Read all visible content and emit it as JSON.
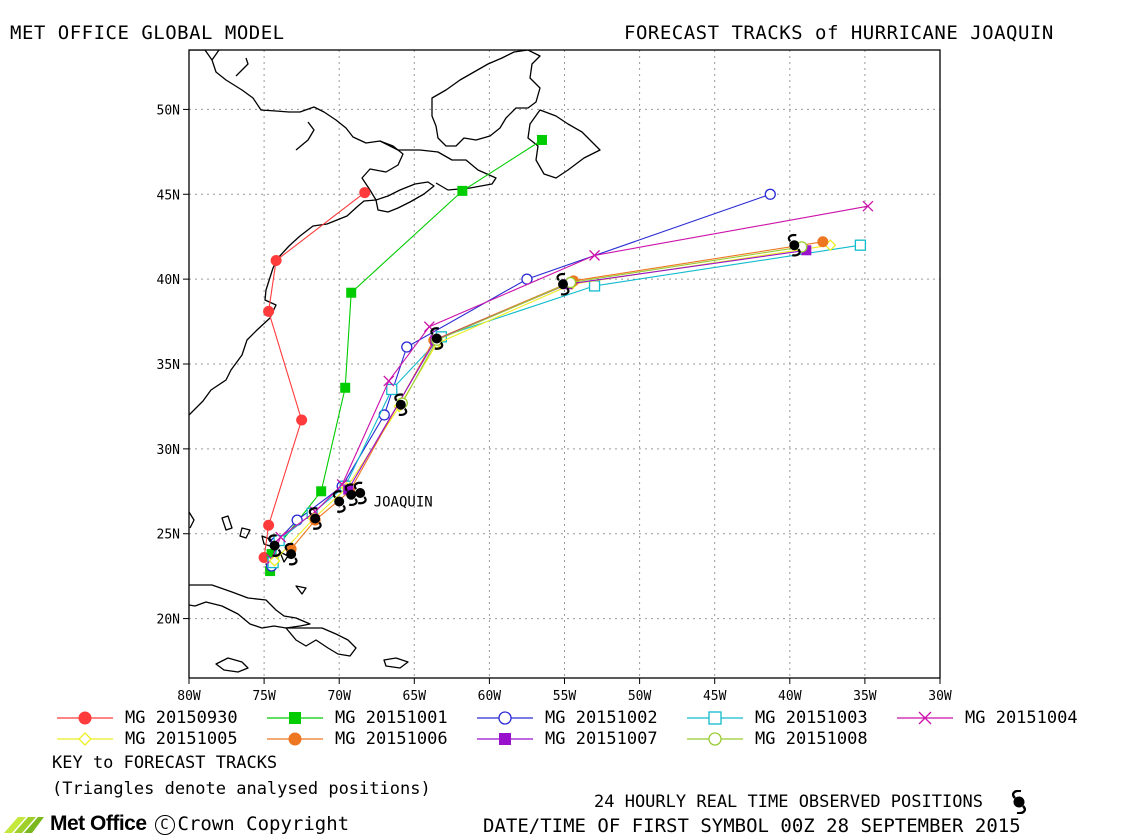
{
  "header": {
    "left_title": "MET OFFICE GLOBAL MODEL",
    "right_title": "FORECAST TRACKS of HURRICANE JOAQUIN"
  },
  "map": {
    "lon_range": [
      -80,
      -30
    ],
    "lat_range": [
      16.5,
      53.5
    ],
    "lon_ticks": [
      {
        "value": -80,
        "label": "80W"
      },
      {
        "value": -75,
        "label": "75W"
      },
      {
        "value": -70,
        "label": "70W"
      },
      {
        "value": -65,
        "label": "65W"
      },
      {
        "value": -60,
        "label": "60W"
      },
      {
        "value": -55,
        "label": "55W"
      },
      {
        "value": -50,
        "label": "50W"
      },
      {
        "value": -45,
        "label": "45W"
      },
      {
        "value": -40,
        "label": "40W"
      },
      {
        "value": -35,
        "label": "35W"
      },
      {
        "value": -30,
        "label": "30W"
      }
    ],
    "lat_ticks": [
      {
        "value": 20,
        "label": "20N"
      },
      {
        "value": 25,
        "label": "25N"
      },
      {
        "value": 30,
        "label": "30N"
      },
      {
        "value": 35,
        "label": "35N"
      },
      {
        "value": 40,
        "label": "40N"
      },
      {
        "value": 45,
        "label": "45N"
      },
      {
        "value": 50,
        "label": "50N"
      }
    ],
    "storm_label": {
      "text": "JOAQUIN",
      "lon": -67.7,
      "lat": 26.6
    }
  },
  "chart_data": {
    "type": "scatter",
    "title": "FORECAST TRACKS of HURRICANE JOAQUIN",
    "grid": true,
    "legend_placement": "bottom",
    "series": [
      {
        "name": "MG 20150930",
        "color": "#ff3b3b",
        "marker": "filled-circle",
        "points": [
          [
            -75.0,
            23.6
          ],
          [
            -74.7,
            25.5
          ],
          [
            -72.5,
            31.7
          ],
          [
            -74.7,
            38.1
          ],
          [
            -74.2,
            41.1
          ],
          [
            -68.3,
            45.1
          ]
        ]
      },
      {
        "name": "MG 20151001",
        "color": "#00cc00",
        "marker": "filled-square",
        "points": [
          [
            -74.6,
            22.8
          ],
          [
            -74.5,
            23.8
          ],
          [
            -71.2,
            27.5
          ],
          [
            -69.6,
            33.6
          ],
          [
            -69.2,
            39.2
          ],
          [
            -61.8,
            45.2
          ],
          [
            -56.5,
            48.2
          ]
        ]
      },
      {
        "name": "MG 20151002",
        "color": "#2a2ad4",
        "marker": "open-circle",
        "points": [
          [
            -74.5,
            23.1
          ],
          [
            -74.2,
            24.5
          ],
          [
            -72.8,
            25.8
          ],
          [
            -69.8,
            27.8
          ],
          [
            -67.0,
            32.0
          ],
          [
            -65.5,
            36.0
          ],
          [
            -57.5,
            40.0
          ],
          [
            -41.3,
            45.0
          ]
        ]
      },
      {
        "name": "MG 20151003",
        "color": "#11bbcc",
        "marker": "open-square",
        "points": [
          [
            -74.4,
            23.3
          ],
          [
            -74.0,
            24.6
          ],
          [
            -71.8,
            26.2
          ],
          [
            -69.6,
            27.8
          ],
          [
            -66.5,
            33.5
          ],
          [
            -63.2,
            36.6
          ],
          [
            -53.0,
            39.6
          ],
          [
            -35.3,
            42.0
          ]
        ]
      },
      {
        "name": "MG 20151004",
        "color": "#cc11aa",
        "marker": "x",
        "points": [
          [
            -74.5,
            23.5
          ],
          [
            -73.9,
            24.8
          ],
          [
            -71.6,
            26.3
          ],
          [
            -69.8,
            27.9
          ],
          [
            -66.7,
            34.0
          ],
          [
            -64.0,
            37.2
          ],
          [
            -53.0,
            41.4
          ],
          [
            -34.8,
            44.3
          ]
        ]
      },
      {
        "name": "MG 20151005",
        "color": "#eeee22",
        "marker": "open-diamond",
        "points": [
          [
            -74.3,
            23.4
          ],
          [
            -71.7,
            25.9
          ],
          [
            -69.5,
            27.7
          ],
          [
            -66.0,
            32.5
          ],
          [
            -63.5,
            36.2
          ],
          [
            -54.5,
            39.7
          ],
          [
            -37.3,
            42.0
          ]
        ]
      },
      {
        "name": "MG 20151006",
        "color": "#ee7722",
        "marker": "filled-circle",
        "points": [
          [
            -73.2,
            24.1
          ],
          [
            -71.6,
            25.8
          ],
          [
            -69.3,
            27.5
          ],
          [
            -63.7,
            36.4
          ],
          [
            -54.4,
            39.9
          ],
          [
            -37.8,
            42.2
          ]
        ]
      },
      {
        "name": "MG 20151007",
        "color": "#9911cc",
        "marker": "filled-square",
        "points": [
          [
            -69.4,
            27.6
          ],
          [
            -63.6,
            36.4
          ],
          [
            -54.8,
            39.7
          ],
          [
            -38.9,
            41.7
          ]
        ]
      },
      {
        "name": "MG 20151008",
        "color": "#99cc33",
        "marker": "open-circle",
        "points": [
          [
            -65.8,
            32.7
          ],
          [
            -63.5,
            36.4
          ],
          [
            -54.6,
            39.8
          ],
          [
            -39.2,
            41.9
          ]
        ]
      }
    ],
    "observed": {
      "name": "24 HOURLY REAL TIME OBSERVED POSITIONS",
      "color": "#000000",
      "points": [
        [
          -74.3,
          24.3
        ],
        [
          -73.2,
          23.8
        ],
        [
          -71.6,
          25.9
        ],
        [
          -70.0,
          26.9
        ],
        [
          -69.2,
          27.3
        ],
        [
          -68.6,
          27.4
        ],
        [
          -65.9,
          32.6
        ],
        [
          -63.5,
          36.5
        ],
        [
          -55.1,
          39.7
        ],
        [
          -39.7,
          42.0
        ]
      ]
    }
  },
  "legend": {
    "items": [
      {
        "label": "MG 20150930",
        "color": "#ff3b3b",
        "marker": "filled-circle"
      },
      {
        "label": "MG 20151001",
        "color": "#00cc00",
        "marker": "filled-square"
      },
      {
        "label": "MG 20151002",
        "color": "#2a2ad4",
        "marker": "open-circle"
      },
      {
        "label": "MG 20151003",
        "color": "#11bbcc",
        "marker": "open-square"
      },
      {
        "label": "MG 20151004",
        "color": "#cc11aa",
        "marker": "x"
      },
      {
        "label": "MG 20151005",
        "color": "#eeee22",
        "marker": "open-diamond"
      },
      {
        "label": "MG 20151006",
        "color": "#ee7722",
        "marker": "filled-circle"
      },
      {
        "label": "MG 20151007",
        "color": "#9911cc",
        "marker": "filled-square"
      },
      {
        "label": "MG 20151008",
        "color": "#99cc33",
        "marker": "open-circle"
      }
    ],
    "key_title": "KEY to FORECAST TRACKS",
    "key_note": "(Triangles denote analysed positions)"
  },
  "footer": {
    "observed_label": "24 HOURLY REAL TIME OBSERVED POSITIONS",
    "datetime_label": "DATE/TIME OF FIRST SYMBOL 00Z 28 SEPTEMBER 2015",
    "brand": "Met Office",
    "copyright_symbol": "C",
    "copyright": "Crown Copyright"
  }
}
